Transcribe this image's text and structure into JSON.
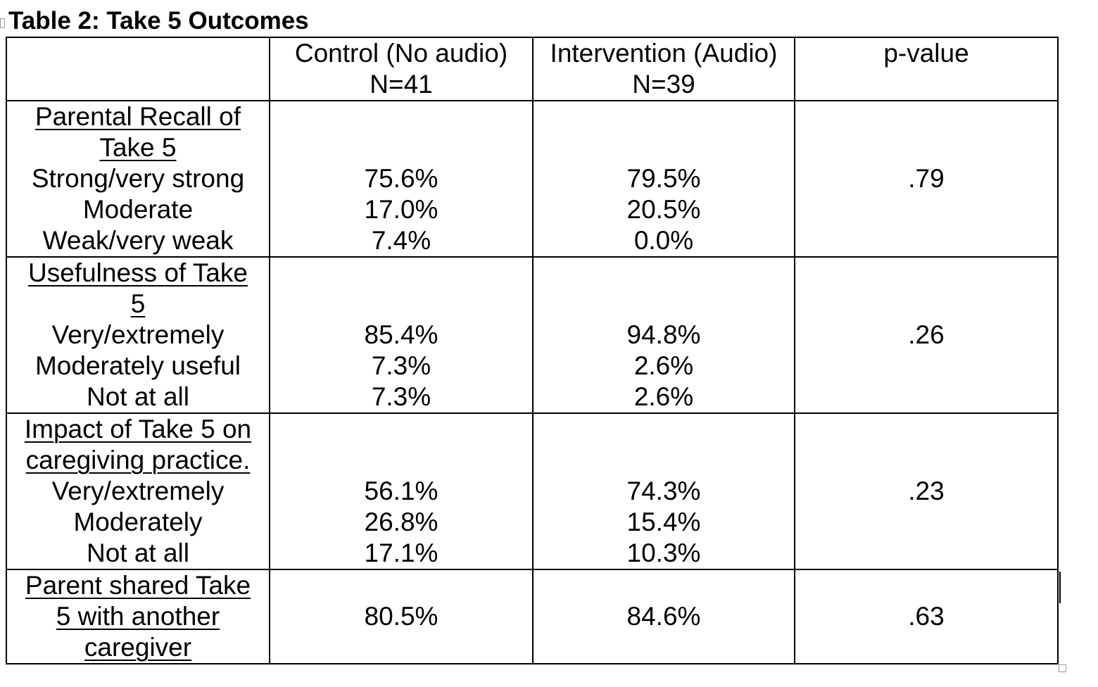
{
  "title": "Table 2: Take 5 Outcomes",
  "header": {
    "control_line1": "Control (No audio)",
    "control_line2": "N=41",
    "intervention_line1": "Intervention (Audio)",
    "intervention_line2": "N=39",
    "pvalue": "p-value"
  },
  "groups": [
    {
      "heading_lines": [
        "Parental Recall of",
        "Take 5"
      ],
      "labels": [
        "Strong/very strong",
        "Moderate",
        "Weak/very weak"
      ],
      "control": [
        "75.6%",
        "17.0%",
        "7.4%"
      ],
      "intervention": [
        "79.5%",
        "20.5%",
        "0.0%"
      ],
      "pvalue": ".79"
    },
    {
      "heading_lines": [
        "Usefulness of Take",
        "5"
      ],
      "labels": [
        "Very/extremely",
        "Moderately useful",
        "Not at all"
      ],
      "control": [
        "85.4%",
        "7.3%",
        "7.3%"
      ],
      "intervention": [
        "94.8%",
        "2.6%",
        "2.6%"
      ],
      "pvalue": ".26"
    },
    {
      "heading_lines": [
        "Impact of Take 5 on",
        "caregiving practice."
      ],
      "labels": [
        "Very/extremely",
        "Moderately",
        "Not at all"
      ],
      "control": [
        "56.1%",
        "26.8%",
        "17.1%"
      ],
      "intervention": [
        "74.3%",
        "15.4%",
        "10.3%"
      ],
      "pvalue": ".23"
    }
  ],
  "last_row": {
    "heading_lines": [
      "Parent shared Take",
      "5 with another",
      "caregiver"
    ],
    "control": "80.5%",
    "intervention": "84.6%",
    "pvalue": ".63"
  }
}
